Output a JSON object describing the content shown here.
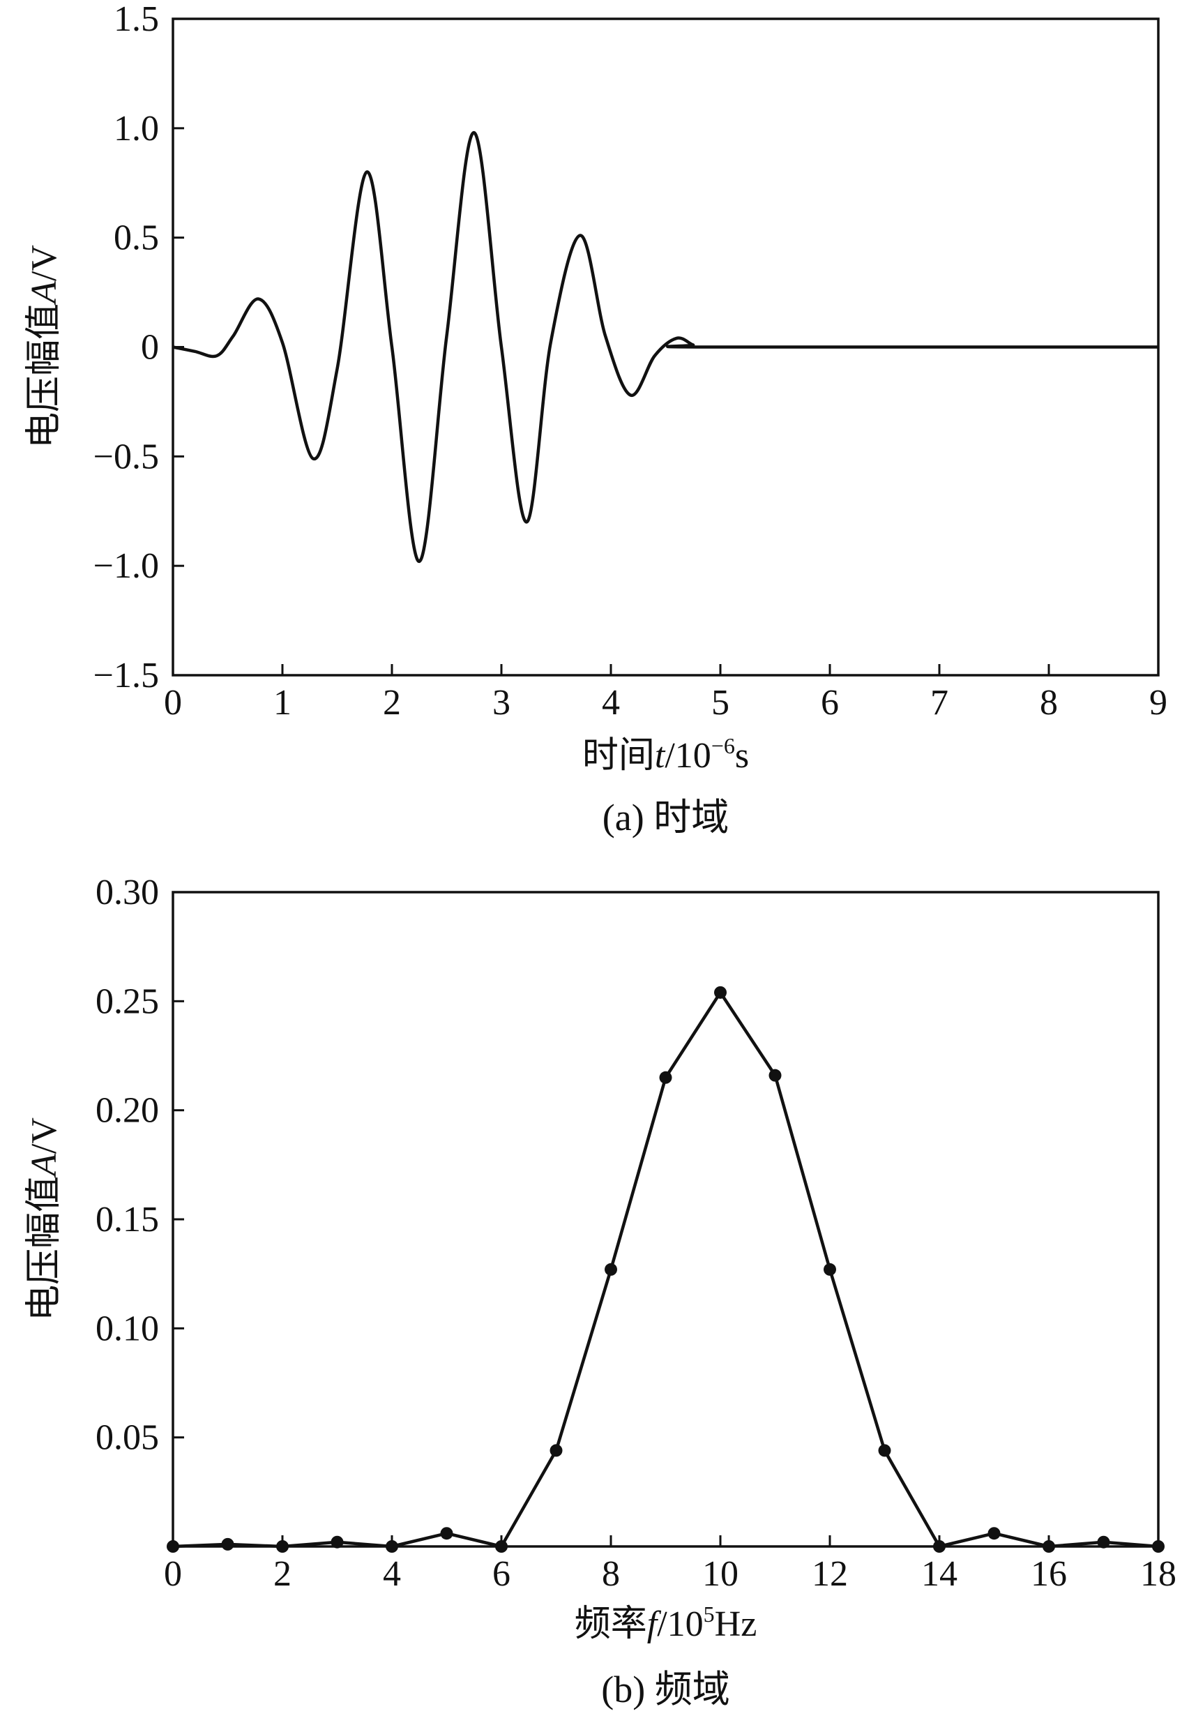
{
  "colors": {
    "ink": "#111111",
    "background": "#ffffff"
  },
  "chart_data": [
    {
      "type": "line",
      "caption": "(a) 时域",
      "xlabel": {
        "prefix": "时间",
        "var": "t",
        "unit_base": "/10",
        "unit_exp": "−6",
        "unit_tail": "s"
      },
      "ylabel": {
        "prefix": "电压幅值",
        "var": "A",
        "unit": "/V"
      },
      "xlim": [
        0,
        9
      ],
      "ylim": [
        -1.5,
        1.5
      ],
      "x_ticks": [
        0,
        1,
        2,
        3,
        4,
        5,
        6,
        7,
        8,
        9
      ],
      "x_tick_labels": [
        "0",
        "1",
        "2",
        "3",
        "4",
        "5",
        "6",
        "7",
        "8",
        "9"
      ],
      "y_ticks": [
        -1.5,
        -1.0,
        -0.5,
        0,
        0.5,
        1.0,
        1.5
      ],
      "y_tick_labels": [
        "−1.5",
        "−1.0",
        "−0.5",
        "0",
        "0.5",
        "1.0",
        "1.5"
      ],
      "grid": false,
      "series": [
        {
          "x": [
            0,
            0.2,
            0.4,
            0.55,
            0.78,
            1.0,
            1.28,
            1.5,
            1.77,
            2.0,
            2.25,
            2.5,
            2.75,
            3.0,
            3.23,
            3.45,
            3.72,
            3.95,
            4.18,
            4.4,
            4.6,
            4.75,
            4.85,
            9.0
          ],
          "y": [
            0,
            -0.02,
            -0.04,
            0.05,
            0.22,
            0.02,
            -0.51,
            -0.1,
            0.8,
            0.0,
            -0.98,
            0.05,
            0.98,
            0.0,
            -0.8,
            0.02,
            0.51,
            0.05,
            -0.22,
            -0.04,
            0.04,
            0.01,
            0,
            0
          ]
        }
      ]
    },
    {
      "type": "line",
      "caption": "(b) 频域",
      "xlabel": {
        "prefix": "频率",
        "var": "f",
        "unit_base": "/10",
        "unit_exp": "5",
        "unit_tail": "Hz"
      },
      "ylabel": {
        "prefix": "电压幅值",
        "var": "A",
        "unit": "/V"
      },
      "xlim": [
        0,
        18
      ],
      "ylim": [
        0,
        0.3
      ],
      "x_ticks": [
        0,
        2,
        4,
        6,
        8,
        10,
        12,
        14,
        16,
        18
      ],
      "x_tick_labels": [
        "0",
        "2",
        "4",
        "6",
        "8",
        "10",
        "12",
        "14",
        "16",
        "18"
      ],
      "y_ticks": [
        0.05,
        0.1,
        0.15,
        0.2,
        0.25,
        0.3
      ],
      "y_tick_labels": [
        "0.05",
        "0.10",
        "0.15",
        "0.20",
        "0.25",
        "0.30"
      ],
      "grid": false,
      "series": [
        {
          "x": [
            0,
            1,
            2,
            3,
            4,
            5,
            6,
            7,
            8,
            9,
            10,
            11,
            12,
            13,
            14,
            15,
            16,
            17,
            18
          ],
          "y": [
            0.0,
            0.001,
            0.0,
            0.002,
            0.0,
            0.006,
            0.0,
            0.044,
            0.127,
            0.215,
            0.254,
            0.216,
            0.127,
            0.044,
            0.0,
            0.006,
            0.0,
            0.002,
            0.0
          ]
        }
      ]
    }
  ]
}
